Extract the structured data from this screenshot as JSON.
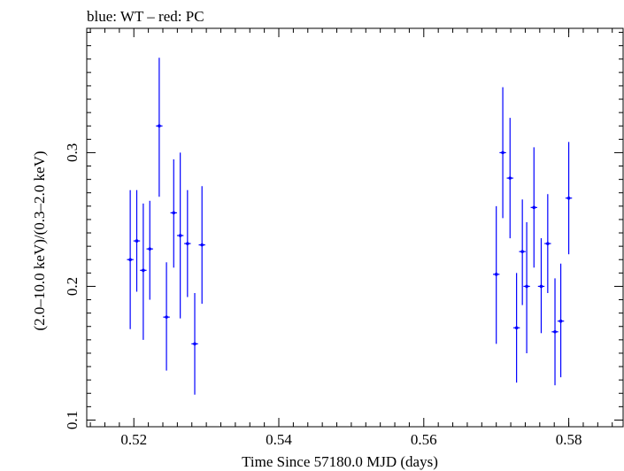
{
  "chart_data": {
    "type": "scatter",
    "title": "blue: WT – red: PC",
    "xlabel": "Time Since 57180.0 MJD (days)",
    "ylabel": "(2.0–10.0 keV)/(0.3–2.0 keV)",
    "xlim": [
      0.5135,
      0.5875
    ],
    "ylim": [
      0.095,
      0.393
    ],
    "x_ticks": [
      0.52,
      0.54,
      0.56,
      0.58
    ],
    "x_tick_labels": [
      "0.52",
      "0.54",
      "0.56",
      "0.58"
    ],
    "y_ticks": [
      0.1,
      0.2,
      0.3
    ],
    "y_tick_labels": [
      "0.1",
      "0.2",
      "0.3"
    ],
    "grid": false,
    "colors": {
      "WT": "#0000ff",
      "PC": "#ff0000",
      "frame": "#000000"
    },
    "series": [
      {
        "marker_color": "#0000ff",
        "xerr": 0.00045,
        "points": [
          {
            "x": 0.5195,
            "y": 0.22,
            "ylo": 0.168,
            "yhi": 0.272
          },
          {
            "x": 0.5204,
            "y": 0.234,
            "ylo": 0.196,
            "yhi": 0.272
          },
          {
            "x": 0.5213,
            "y": 0.212,
            "ylo": 0.16,
            "yhi": 0.262
          },
          {
            "x": 0.5222,
            "y": 0.228,
            "ylo": 0.19,
            "yhi": 0.264
          },
          {
            "x": 0.5235,
            "y": 0.32,
            "ylo": 0.267,
            "yhi": 0.371
          },
          {
            "x": 0.5245,
            "y": 0.177,
            "ylo": 0.137,
            "yhi": 0.218
          },
          {
            "x": 0.5255,
            "y": 0.255,
            "ylo": 0.214,
            "yhi": 0.295
          },
          {
            "x": 0.5264,
            "y": 0.238,
            "ylo": 0.176,
            "yhi": 0.3
          },
          {
            "x": 0.5274,
            "y": 0.232,
            "ylo": 0.192,
            "yhi": 0.272
          },
          {
            "x": 0.5284,
            "y": 0.157,
            "ylo": 0.119,
            "yhi": 0.195
          },
          {
            "x": 0.5294,
            "y": 0.231,
            "ylo": 0.187,
            "yhi": 0.275
          },
          {
            "x": 0.57,
            "y": 0.209,
            "ylo": 0.157,
            "yhi": 0.26
          },
          {
            "x": 0.5709,
            "y": 0.3,
            "ylo": 0.251,
            "yhi": 0.349
          },
          {
            "x": 0.5719,
            "y": 0.281,
            "ylo": 0.236,
            "yhi": 0.326
          },
          {
            "x": 0.5728,
            "y": 0.169,
            "ylo": 0.128,
            "yhi": 0.21
          },
          {
            "x": 0.5736,
            "y": 0.226,
            "ylo": 0.186,
            "yhi": 0.265
          },
          {
            "x": 0.5742,
            "y": 0.2,
            "ylo": 0.15,
            "yhi": 0.248
          },
          {
            "x": 0.5752,
            "y": 0.259,
            "ylo": 0.214,
            "yhi": 0.304
          },
          {
            "x": 0.5762,
            "y": 0.2,
            "ylo": 0.165,
            "yhi": 0.236
          },
          {
            "x": 0.5771,
            "y": 0.232,
            "ylo": 0.195,
            "yhi": 0.269
          },
          {
            "x": 0.5781,
            "y": 0.166,
            "ylo": 0.126,
            "yhi": 0.206
          },
          {
            "x": 0.5789,
            "y": 0.174,
            "ylo": 0.132,
            "yhi": 0.217
          },
          {
            "x": 0.58,
            "y": 0.266,
            "ylo": 0.224,
            "yhi": 0.308
          }
        ]
      }
    ]
  }
}
